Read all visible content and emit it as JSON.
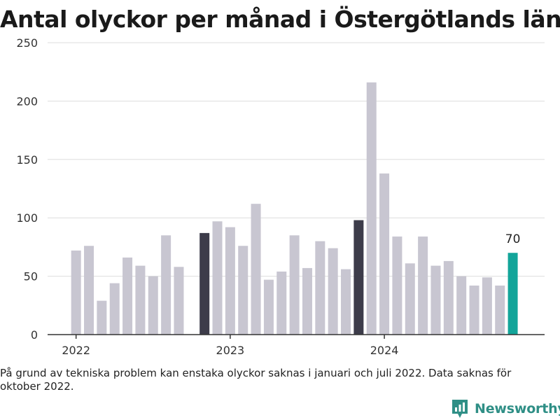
{
  "chart_data": {
    "type": "bar",
    "title": "Antal olyckor per månad i Östergötlands län",
    "xlabel": "",
    "ylabel": "",
    "ylim": [
      0,
      250
    ],
    "yticks": [
      0,
      50,
      100,
      150,
      200,
      250
    ],
    "x_tick_labels": [
      "2022",
      "2023",
      "2024"
    ],
    "grid": true,
    "months": [
      "2022-01",
      "2022-02",
      "2022-03",
      "2022-04",
      "2022-05",
      "2022-06",
      "2022-07",
      "2022-08",
      "2022-09",
      "2022-10",
      "2022-11",
      "2022-12",
      "2023-01",
      "2023-02",
      "2023-03",
      "2023-04",
      "2023-05",
      "2023-06",
      "2023-07",
      "2023-08",
      "2023-09",
      "2023-10",
      "2023-11",
      "2023-12",
      "2024-01",
      "2024-02",
      "2024-03",
      "2024-04",
      "2024-05",
      "2024-06",
      "2024-07",
      "2024-08",
      "2024-09",
      "2024-10",
      "2024-11",
      "2024-12"
    ],
    "values": [
      72,
      76,
      29,
      44,
      66,
      59,
      50,
      85,
      58,
      null,
      87,
      97,
      92,
      76,
      112,
      47,
      54,
      85,
      57,
      80,
      74,
      56,
      98,
      216,
      138,
      84,
      61,
      84,
      59,
      63,
      50,
      42,
      49,
      42,
      70,
      null
    ],
    "highlight_months": [
      "2022-11",
      "2023-11"
    ],
    "latest_month": "2024-11",
    "latest_label": "70",
    "colors": {
      "default": "#c8c6d1",
      "highlight": "#3d3c4a",
      "latest": "#13a59a",
      "grid": "#dddddd",
      "axis": "#333333"
    }
  },
  "footnote": "På grund av tekniska problem kan enstaka olyckor saknas i januari och juli 2022. Data saknas för oktober 2022.",
  "brand": {
    "name": "Newsworthy",
    "icon": "newsworthy-logo-icon",
    "color": "#2f8f86"
  }
}
